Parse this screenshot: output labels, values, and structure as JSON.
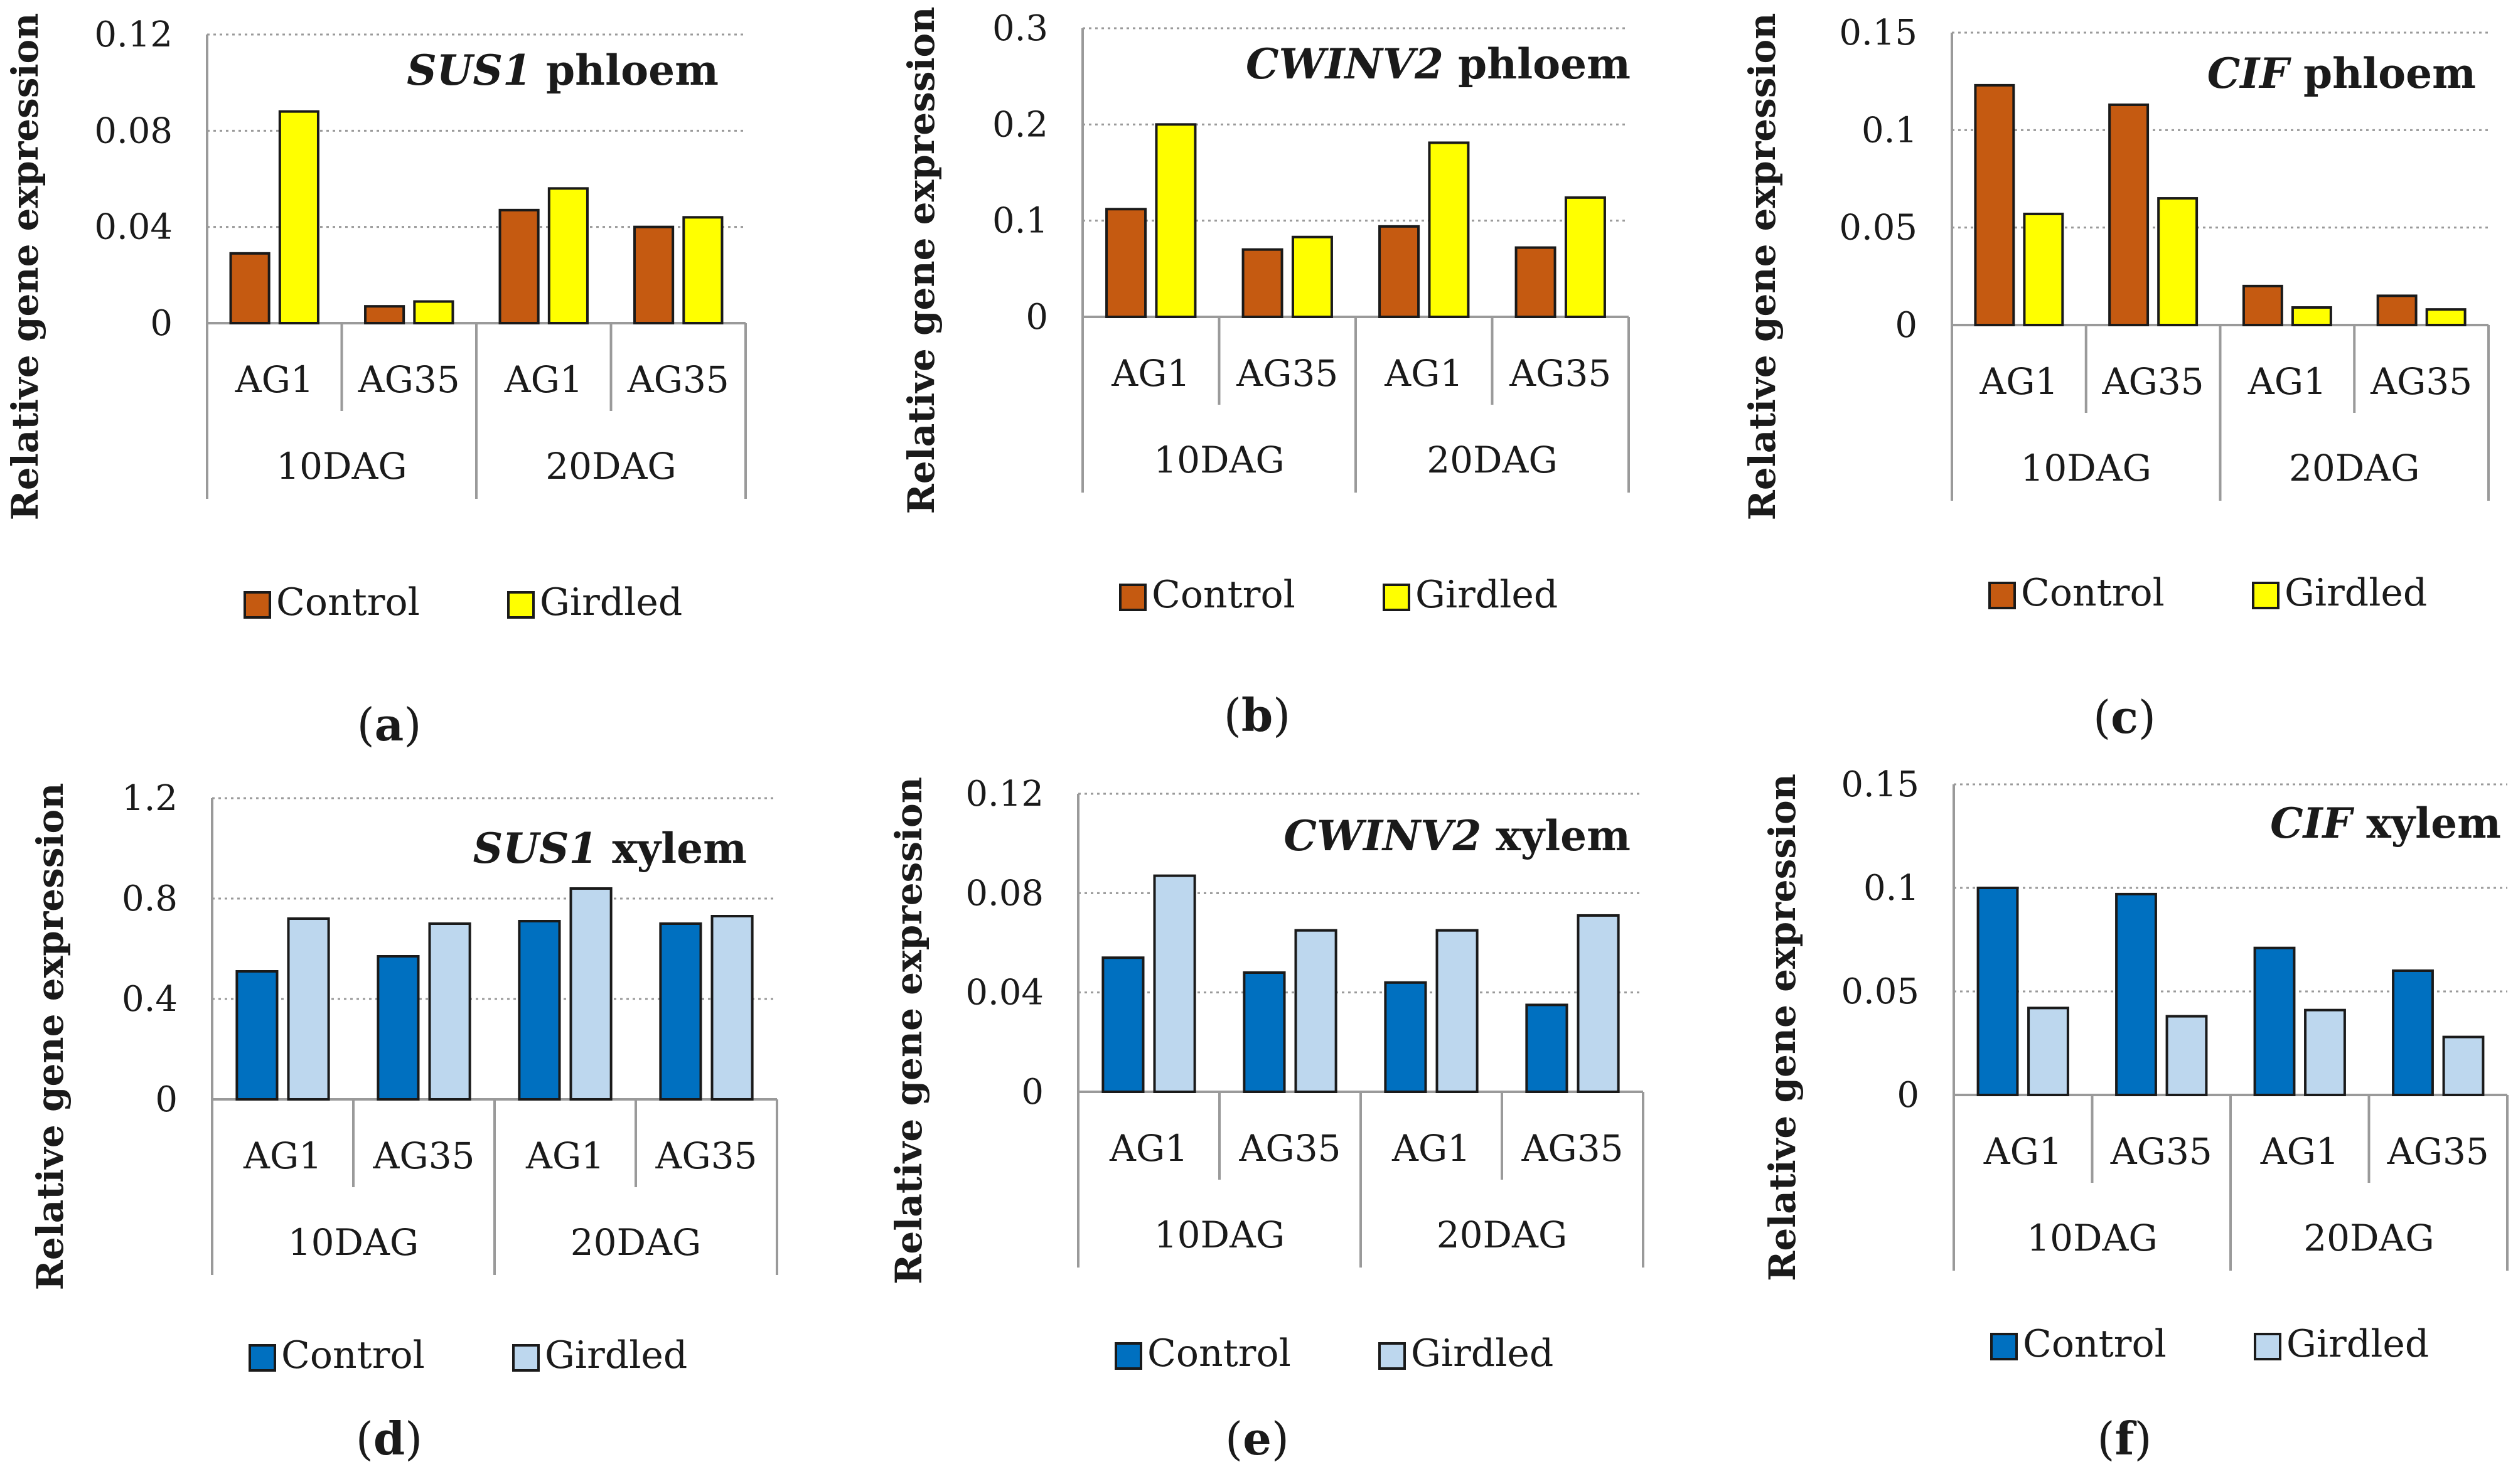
{
  "figure": {
    "legend": [
      "Control",
      "Girdled"
    ]
  },
  "chart_data": [
    {
      "type": "bar",
      "panel_label": "a",
      "title": {
        "gene": "SUS1",
        "tissue": "phloem"
      },
      "ylabel": "Relative gene expression",
      "ylim": [
        0,
        0.12
      ],
      "yticks": [
        "0.12",
        "0.08",
        "0.04",
        "0"
      ],
      "categories": [
        "AG1",
        "AG35",
        "AG1",
        "AG35"
      ],
      "groups": [
        "10DAG",
        "20DAG"
      ],
      "colors": {
        "Control": "#c55a11",
        "Girdled": "#ffff00"
      },
      "series": [
        {
          "name": "Control",
          "values": [
            0.029,
            0.007,
            0.047,
            0.04
          ]
        },
        {
          "name": "Girdled",
          "values": [
            0.088,
            0.009,
            0.056,
            0.044
          ]
        }
      ],
      "legend": [
        "Control",
        "Girdled"
      ]
    },
    {
      "type": "bar",
      "panel_label": "b",
      "title": {
        "gene": "CWINV2",
        "tissue": "phloem"
      },
      "ylabel": "Relative gene expression",
      "ylim": [
        0,
        0.3
      ],
      "yticks": [
        "0.3",
        "0.2",
        "0.1",
        "0"
      ],
      "categories": [
        "AG1",
        "AG35",
        "AG1",
        "AG35"
      ],
      "groups": [
        "10DAG",
        "20DAG"
      ],
      "colors": {
        "Control": "#c55a11",
        "Girdled": "#ffff00"
      },
      "series": [
        {
          "name": "Control",
          "values": [
            0.112,
            0.07,
            0.094,
            0.072
          ]
        },
        {
          "name": "Girdled",
          "values": [
            0.2,
            0.083,
            0.181,
            0.124
          ]
        }
      ],
      "legend": [
        "Control",
        "Girdled"
      ]
    },
    {
      "type": "bar",
      "panel_label": "c",
      "title": {
        "gene": "CIF",
        "tissue": "phloem"
      },
      "ylabel": "Relative gene expression",
      "ylim": [
        0,
        0.15
      ],
      "yticks": [
        "0.15",
        "0.1",
        "0.05",
        "0"
      ],
      "categories": [
        "AG1",
        "AG35",
        "AG1",
        "AG35"
      ],
      "groups": [
        "10DAG",
        "20DAG"
      ],
      "colors": {
        "Control": "#c55a11",
        "Girdled": "#ffff00"
      },
      "series": [
        {
          "name": "Control",
          "values": [
            0.123,
            0.113,
            0.02,
            0.015
          ]
        },
        {
          "name": "Girdled",
          "values": [
            0.057,
            0.065,
            0.009,
            0.008
          ]
        }
      ],
      "legend": [
        "Control",
        "Girdled"
      ]
    },
    {
      "type": "bar",
      "panel_label": "d",
      "title": {
        "gene": "SUS1",
        "tissue": "xylem"
      },
      "ylabel": "Relative gene expression",
      "ylim": [
        0,
        1.2
      ],
      "yticks": [
        "1.2",
        "0.8",
        "0.4",
        "0"
      ],
      "categories": [
        "AG1",
        "AG35",
        "AG1",
        "AG35"
      ],
      "groups": [
        "10DAG",
        "20DAG"
      ],
      "colors": {
        "Control": "#0070c0",
        "Girdled": "#bdd7ee"
      },
      "series": [
        {
          "name": "Control",
          "values": [
            0.51,
            0.57,
            0.71,
            0.7
          ]
        },
        {
          "name": "Girdled",
          "values": [
            0.72,
            0.7,
            0.84,
            0.73
          ]
        }
      ],
      "legend": [
        "Control",
        "Girdled"
      ]
    },
    {
      "type": "bar",
      "panel_label": "e",
      "title": {
        "gene": "CWINV2",
        "tissue": "xylem"
      },
      "ylabel": "Relative gene expression",
      "ylim": [
        0,
        0.12
      ],
      "yticks": [
        "0.12",
        "0.08",
        "0.04",
        "0"
      ],
      "categories": [
        "AG1",
        "AG35",
        "AG1",
        "AG35"
      ],
      "groups": [
        "10DAG",
        "20DAG"
      ],
      "colors": {
        "Control": "#0070c0",
        "Girdled": "#bdd7ee"
      },
      "series": [
        {
          "name": "Control",
          "values": [
            0.054,
            0.048,
            0.044,
            0.035
          ]
        },
        {
          "name": "Girdled",
          "values": [
            0.087,
            0.065,
            0.065,
            0.071
          ]
        }
      ],
      "legend": [
        "Control",
        "Girdled"
      ]
    },
    {
      "type": "bar",
      "panel_label": "f",
      "title": {
        "gene": "CIF",
        "tissue": "xylem"
      },
      "ylabel": "Relative gene expression",
      "ylim": [
        0,
        0.15
      ],
      "yticks": [
        "0.15",
        "0.1",
        "0.05",
        "0"
      ],
      "categories": [
        "AG1",
        "AG35",
        "AG1",
        "AG35"
      ],
      "groups": [
        "10DAG",
        "20DAG"
      ],
      "colors": {
        "Control": "#0070c0",
        "Girdled": "#bdd7ee"
      },
      "series": [
        {
          "name": "Control",
          "values": [
            0.1,
            0.097,
            0.071,
            0.06
          ]
        },
        {
          "name": "Girdled",
          "values": [
            0.042,
            0.038,
            0.041,
            0.028
          ]
        }
      ],
      "legend": [
        "Control",
        "Girdled"
      ]
    }
  ]
}
